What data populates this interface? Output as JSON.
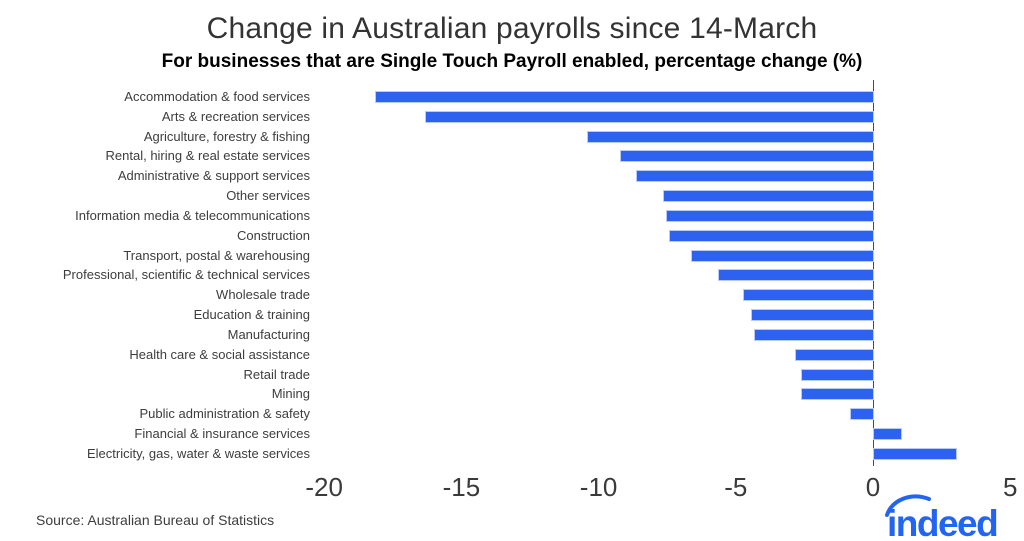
{
  "title": "Change in Australian payrolls since 14-March",
  "subtitle": "For businesses that are Single Touch Payroll enabled, percentage change (%)",
  "source": "Source: Australian Bureau of Statistics",
  "logo_text": "indeed",
  "colors": {
    "bar": "#2d62f0",
    "bar_edge": "#b8cbf7",
    "axis_line": "#4a4a4a",
    "logo_blue": "#2365f3",
    "title_text": "#333333",
    "body_text": "#3d3d3d"
  },
  "chart_data": {
    "type": "bar",
    "orientation": "horizontal",
    "title": "Change in Australian payrolls since 14-March",
    "subtitle": "For businesses that are Single Touch Payroll enabled, percentage change (%)",
    "xlabel": "",
    "ylabel": "",
    "xlim": [
      -20,
      5
    ],
    "xticks": [
      -20,
      -15,
      -10,
      -5,
      0,
      5
    ],
    "grid": false,
    "legend": false,
    "categories": [
      "Accommodation & food services",
      "Arts & recreation services",
      "Agriculture, forestry & fishing",
      "Rental, hiring & real estate services",
      "Administrative & support services",
      "Other services",
      "Information media & telecommunications",
      "Construction",
      "Transport, postal & warehousing",
      "Professional, scientific & technical services",
      "Wholesale trade",
      "Education & training",
      "Manufacturing",
      "Health care & social assistance",
      "Retail trade",
      "Mining",
      "Public administration & safety",
      "Financial & insurance services",
      "Electricity, gas, water & waste services"
    ],
    "values": [
      -18.1,
      -16.3,
      -10.4,
      -9.2,
      -8.6,
      -7.6,
      -7.5,
      -7.4,
      -6.6,
      -5.6,
      -4.7,
      -4.4,
      -4.3,
      -2.8,
      -2.6,
      -2.6,
      -0.8,
      1.0,
      3.0
    ]
  }
}
